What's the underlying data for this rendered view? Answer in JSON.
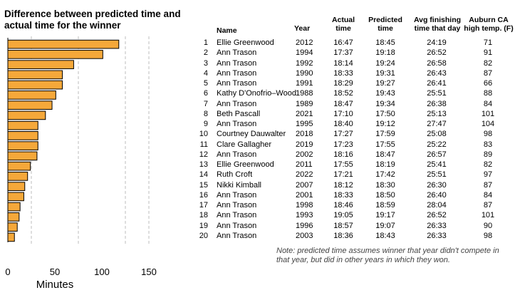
{
  "chart_data": {
    "type": "bar",
    "orientation": "horizontal",
    "title": "Difference between predicted time and actual time for the winner",
    "xlabel": "Minutes",
    "ylabel": "",
    "xlim": [
      0,
      150
    ],
    "xticks": [
      0,
      50,
      100,
      150
    ],
    "gridlines": [
      25,
      75,
      125,
      150
    ],
    "grid": true,
    "categories": [
      "1",
      "2",
      "3",
      "4",
      "5",
      "6",
      "7",
      "8",
      "9",
      "10",
      "11",
      "12",
      "13",
      "14",
      "15",
      "16",
      "17",
      "18",
      "19",
      "20"
    ],
    "values": [
      118,
      101,
      70,
      58,
      58,
      51,
      47,
      40,
      32,
      32,
      32,
      31,
      24,
      21,
      18,
      17,
      13,
      12,
      10,
      7
    ],
    "bar_color": "#F5A83A",
    "bar_stroke": "#000000"
  },
  "table": {
    "headers": {
      "name": "Name",
      "year": "Year",
      "actual_1": "Actual",
      "actual_2": "time",
      "pred_1": "Predicted",
      "pred_2": "time",
      "avg_1": "Avg finishing",
      "avg_2": "time that day",
      "temp_1": "Auburn CA",
      "temp_2": "high temp. (F)"
    },
    "rows": [
      {
        "rank": "1",
        "name": "Ellie Greenwood",
        "year": "2012",
        "actual": "16:47",
        "predicted": "18:45",
        "avg": "24:19",
        "temp": "71"
      },
      {
        "rank": "2",
        "name": "Ann Trason",
        "year": "1994",
        "actual": "17:37",
        "predicted": "19:18",
        "avg": "26:52",
        "temp": "91"
      },
      {
        "rank": "3",
        "name": "Ann Trason",
        "year": "1992",
        "actual": "18:14",
        "predicted": "19:24",
        "avg": "26:58",
        "temp": "82"
      },
      {
        "rank": "4",
        "name": "Ann Trason",
        "year": "1990",
        "actual": "18:33",
        "predicted": "19:31",
        "avg": "26:43",
        "temp": "87"
      },
      {
        "rank": "5",
        "name": "Ann Trason",
        "year": "1991",
        "actual": "18:29",
        "predicted": "19:27",
        "avg": "26:41",
        "temp": "66"
      },
      {
        "rank": "6",
        "name": "Kathy D'Onofrio–Wood",
        "year": "1988",
        "actual": "18:52",
        "predicted": "19:43",
        "avg": "25:51",
        "temp": "88"
      },
      {
        "rank": "7",
        "name": "Ann Trason",
        "year": "1989",
        "actual": "18:47",
        "predicted": "19:34",
        "avg": "26:38",
        "temp": "84"
      },
      {
        "rank": "8",
        "name": "Beth Pascall",
        "year": "2021",
        "actual": "17:10",
        "predicted": "17:50",
        "avg": "25:13",
        "temp": "101"
      },
      {
        "rank": "9",
        "name": "Ann Trason",
        "year": "1995",
        "actual": "18:40",
        "predicted": "19:12",
        "avg": "27:47",
        "temp": "104"
      },
      {
        "rank": "10",
        "name": "Courtney Dauwalter",
        "year": "2018",
        "actual": "17:27",
        "predicted": "17:59",
        "avg": "25:08",
        "temp": "98"
      },
      {
        "rank": "11",
        "name": "Clare Gallagher",
        "year": "2019",
        "actual": "17:23",
        "predicted": "17:55",
        "avg": "25:22",
        "temp": "83"
      },
      {
        "rank": "12",
        "name": "Ann Trason",
        "year": "2002",
        "actual": "18:16",
        "predicted": "18:47",
        "avg": "26:57",
        "temp": "89"
      },
      {
        "rank": "13",
        "name": "Ellie Greenwood",
        "year": "2011",
        "actual": "17:55",
        "predicted": "18:19",
        "avg": "25:41",
        "temp": "82"
      },
      {
        "rank": "14",
        "name": "Ruth Croft",
        "year": "2022",
        "actual": "17:21",
        "predicted": "17:42",
        "avg": "25:51",
        "temp": "97"
      },
      {
        "rank": "15",
        "name": "Nikki Kimball",
        "year": "2007",
        "actual": "18:12",
        "predicted": "18:30",
        "avg": "26:30",
        "temp": "87"
      },
      {
        "rank": "16",
        "name": "Ann Trason",
        "year": "2001",
        "actual": "18:33",
        "predicted": "18:50",
        "avg": "26:40",
        "temp": "84"
      },
      {
        "rank": "17",
        "name": "Ann Trason",
        "year": "1998",
        "actual": "18:46",
        "predicted": "18:59",
        "avg": "28:04",
        "temp": "87"
      },
      {
        "rank": "18",
        "name": "Ann Trason",
        "year": "1993",
        "actual": "19:05",
        "predicted": "19:17",
        "avg": "26:52",
        "temp": "101"
      },
      {
        "rank": "19",
        "name": "Ann Trason",
        "year": "1996",
        "actual": "18:57",
        "predicted": "19:07",
        "avg": "26:33",
        "temp": "90"
      },
      {
        "rank": "20",
        "name": "Ann Trason",
        "year": "2003",
        "actual": "18:36",
        "predicted": "18:43",
        "avg": "26:33",
        "temp": "98"
      }
    ]
  },
  "note": "Note: predicted time assumes winner that year didn't compete in that year, but did in other years in which they won."
}
